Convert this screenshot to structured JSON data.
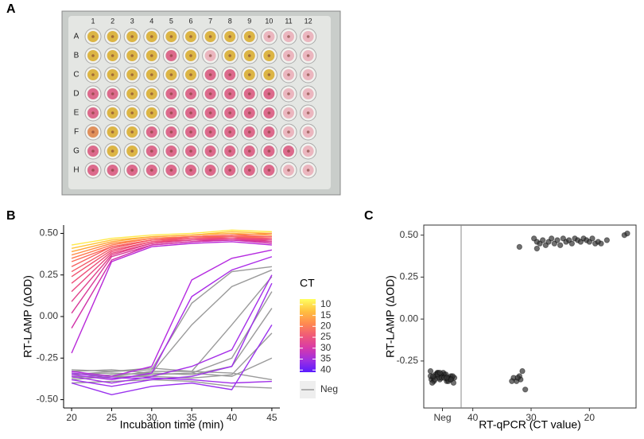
{
  "plate": {
    "panel_label": "A",
    "rows": [
      "A",
      "B",
      "C",
      "D",
      "E",
      "F",
      "G",
      "H"
    ],
    "columns": [
      "1",
      "2",
      "3",
      "4",
      "5",
      "6",
      "7",
      "8",
      "9",
      "10",
      "11",
      "12"
    ]
  },
  "chart_data": [
    {
      "type": "line",
      "panel_label": "B",
      "xlabel": "Incubation time (min)",
      "ylabel": "RT-LAMP (ΔOD)",
      "x": [
        20,
        25,
        30,
        35,
        40,
        45
      ],
      "xlim": [
        19,
        46
      ],
      "xticks": [
        20,
        25,
        30,
        35,
        40,
        45
      ],
      "ylim": [
        -0.55,
        0.55
      ],
      "yticks": [
        {
          "value": -0.5,
          "label": "-0.50"
        },
        {
          "value": -0.25,
          "label": "-0.25"
        },
        {
          "value": 0,
          "label": "0.00"
        },
        {
          "value": 0.25,
          "label": "0.25"
        },
        {
          "value": 0.5,
          "label": "0.50"
        }
      ],
      "legend": {
        "title": "CT",
        "lim": [
          7.5,
          41
        ],
        "ticks": [
          10,
          15,
          20,
          25,
          30,
          35,
          40
        ],
        "colors": [
          "#ffff60",
          "#ffc040",
          "#ff8a50",
          "#f05a78",
          "#d83aa8",
          "#a030e0",
          "#5a1cff"
        ],
        "neg_label": "Neg",
        "neg_color": "#9a9a9a"
      },
      "series": [
        {
          "color": "#ffe94a",
          "values": [
            0.43,
            0.47,
            0.49,
            0.5,
            0.52,
            0.51
          ]
        },
        {
          "color": "#ffc43a",
          "values": [
            0.41,
            0.46,
            0.48,
            0.49,
            0.51,
            0.5
          ]
        },
        {
          "color": "#ffa53a",
          "values": [
            0.39,
            0.45,
            0.48,
            0.49,
            0.5,
            0.49
          ]
        },
        {
          "color": "#ff8a45",
          "values": [
            0.37,
            0.44,
            0.47,
            0.48,
            0.49,
            0.5
          ]
        },
        {
          "color": "#ff7a50",
          "values": [
            0.35,
            0.43,
            0.47,
            0.48,
            0.48,
            0.48
          ]
        },
        {
          "color": "#fb6a5a",
          "values": [
            0.33,
            0.42,
            0.46,
            0.47,
            0.48,
            0.47
          ]
        },
        {
          "color": "#f76060",
          "values": [
            0.3,
            0.42,
            0.46,
            0.48,
            0.49,
            0.48
          ]
        },
        {
          "color": "#f45a68",
          "values": [
            0.27,
            0.41,
            0.46,
            0.47,
            0.48,
            0.46
          ]
        },
        {
          "color": "#f05470",
          "values": [
            0.24,
            0.4,
            0.45,
            0.47,
            0.47,
            0.47
          ]
        },
        {
          "color": "#ee4e78",
          "values": [
            0.2,
            0.39,
            0.45,
            0.46,
            0.47,
            0.46
          ]
        },
        {
          "color": "#e84880",
          "values": [
            0.15,
            0.38,
            0.44,
            0.46,
            0.47,
            0.45
          ]
        },
        {
          "color": "#e0408a",
          "values": [
            0.09,
            0.37,
            0.44,
            0.46,
            0.46,
            0.46
          ]
        },
        {
          "color": "#d83898",
          "values": [
            0.02,
            0.36,
            0.43,
            0.45,
            0.46,
            0.45
          ]
        },
        {
          "color": "#d030a8",
          "values": [
            -0.07,
            0.34,
            0.43,
            0.45,
            0.46,
            0.44
          ]
        },
        {
          "color": "#b828d8",
          "values": [
            -0.22,
            0.33,
            0.42,
            0.44,
            0.45,
            0.43
          ]
        },
        {
          "color": "#b52ae0",
          "values": [
            -0.33,
            -0.36,
            -0.3,
            0.22,
            0.35,
            0.4
          ]
        },
        {
          "color": "#aa2ae8",
          "values": [
            -0.35,
            -0.38,
            -0.34,
            0.12,
            0.28,
            0.36
          ]
        },
        {
          "color": "#a52ee8",
          "values": [
            -0.36,
            -0.4,
            -0.36,
            -0.3,
            -0.2,
            0.25
          ]
        },
        {
          "color": "#9e30ec",
          "values": [
            -0.38,
            -0.42,
            -0.38,
            -0.36,
            -0.3,
            0.2
          ]
        },
        {
          "color": "#9a32ee",
          "values": [
            -0.4,
            -0.47,
            -0.42,
            -0.4,
            -0.44,
            -0.05
          ]
        },
        {
          "color": "#a030e8",
          "values": [
            -0.34,
            -0.37,
            -0.37,
            -0.38,
            -0.4,
            -0.39
          ]
        },
        {
          "color": "#9a9a9a",
          "values": [
            -0.35,
            -0.33,
            -0.32,
            0.08,
            0.27,
            0.3
          ]
        },
        {
          "color": "#9a9a9a",
          "values": [
            -0.37,
            -0.35,
            -0.34,
            -0.05,
            0.18,
            0.28
          ]
        },
        {
          "color": "#9a9a9a",
          "values": [
            -0.34,
            -0.36,
            -0.33,
            -0.33,
            -0.05,
            0.24
          ]
        },
        {
          "color": "#9a9a9a",
          "values": [
            -0.36,
            -0.37,
            -0.35,
            -0.34,
            -0.25,
            0.15
          ]
        },
        {
          "color": "#9a9a9a",
          "values": [
            -0.33,
            -0.32,
            -0.34,
            -0.35,
            -0.3,
            0.05
          ]
        },
        {
          "color": "#9a9a9a",
          "values": [
            -0.38,
            -0.36,
            -0.36,
            -0.37,
            -0.35,
            -0.1
          ]
        },
        {
          "color": "#9a9a9a",
          "values": [
            -0.35,
            -0.34,
            -0.35,
            -0.34,
            -0.36,
            -0.25
          ]
        },
        {
          "color": "#9a9a9a",
          "values": [
            -0.4,
            -0.39,
            -0.38,
            -0.39,
            -0.42,
            -0.43
          ]
        },
        {
          "color": "#9a9a9a",
          "values": [
            -0.32,
            -0.33,
            -0.31,
            -0.33,
            -0.34,
            -0.38
          ]
        }
      ]
    },
    {
      "type": "scatter",
      "panel_label": "C",
      "xlabel": "RT-qPCR (CT value)",
      "ylabel": "RT-LAMP (ΔOD)",
      "xlim": [
        42,
        12
      ],
      "xticks": [
        40,
        30,
        20
      ],
      "ylim": [
        -0.53,
        0.56
      ],
      "yticks": [
        {
          "value": -0.25,
          "label": "-0.25"
        },
        {
          "value": 0,
          "label": "0.00"
        },
        {
          "value": 0.25,
          "label": "0.25"
        },
        {
          "value": 0.5,
          "label": "0.50"
        }
      ],
      "color": "#333333",
      "neg": {
        "label": "Neg",
        "values": [
          -0.31,
          -0.32,
          -0.33,
          -0.34,
          -0.35,
          -0.36,
          -0.37,
          -0.38,
          -0.33,
          -0.34,
          -0.35,
          -0.36,
          -0.32,
          -0.34,
          -0.35,
          -0.37,
          -0.33,
          -0.36,
          -0.35,
          -0.34,
          -0.32,
          -0.36,
          -0.38,
          -0.35,
          -0.33,
          -0.34,
          -0.36,
          -0.35,
          -0.37,
          -0.34,
          -0.33,
          -0.35,
          -0.36,
          -0.34,
          -0.32,
          -0.35
        ]
      },
      "x": [
        33,
        32.5,
        32,
        31.5,
        31.8,
        32.3,
        31,
        33.3,
        32,
        29.5,
        29,
        28.5,
        29,
        28,
        27.5,
        27,
        26.5,
        26,
        25.5,
        25,
        24.5,
        24,
        23.5,
        23,
        22.5,
        22,
        21.5,
        21,
        20.5,
        20,
        19.5,
        19,
        18.5,
        18,
        17,
        14,
        13.5
      ],
      "values": [
        -0.35,
        -0.37,
        -0.34,
        -0.31,
        -0.36,
        -0.35,
        -0.42,
        -0.37,
        0.43,
        0.48,
        0.46,
        0.45,
        0.42,
        0.47,
        0.44,
        0.46,
        0.48,
        0.45,
        0.47,
        0.44,
        0.48,
        0.46,
        0.47,
        0.45,
        0.48,
        0.47,
        0.46,
        0.48,
        0.47,
        0.46,
        0.48,
        0.45,
        0.46,
        0.45,
        0.47,
        0.5,
        0.51
      ]
    }
  ]
}
